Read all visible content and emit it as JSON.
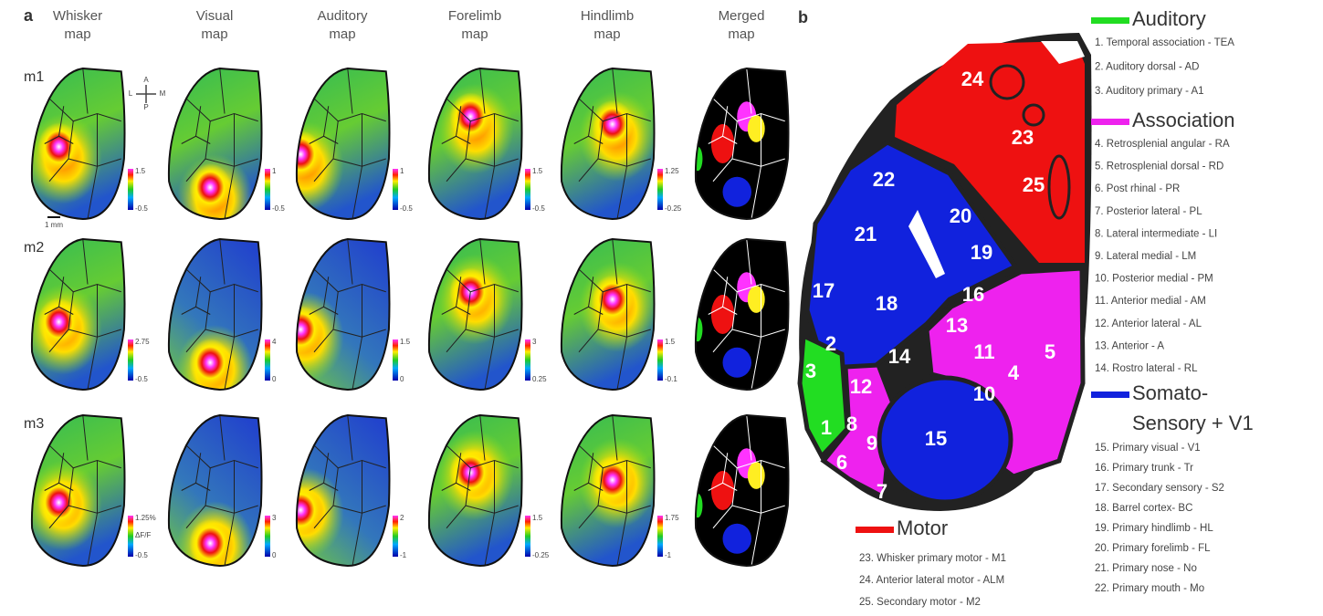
{
  "panel_a": {
    "label": "a",
    "columns": [
      [
        "Whisker",
        "map"
      ],
      [
        "Visual",
        "map"
      ],
      [
        "Auditory",
        "map"
      ],
      [
        "Forelimb",
        "map"
      ],
      [
        "Hindlimb",
        "map"
      ],
      [
        "Merged",
        "map"
      ]
    ],
    "orientation": {
      "a": "A",
      "p": "P",
      "l": "L",
      "m": "M"
    },
    "scale": "1 mm",
    "rows": [
      {
        "label": "m1",
        "colorbars": [
          {
            "max": "1.5",
            "min": "-0.5"
          },
          {
            "max": "1",
            "min": "-0.5"
          },
          {
            "max": "1",
            "min": "-0.5"
          },
          {
            "max": "1.5",
            "min": "-0.5"
          },
          {
            "max": "1.25",
            "min": "-0.25"
          }
        ]
      },
      {
        "label": "m2",
        "colorbars": [
          {
            "max": "2.75",
            "min": "-0.5"
          },
          {
            "max": "4",
            "min": "0"
          },
          {
            "max": "1.5",
            "min": "0"
          },
          {
            "max": "3",
            "min": "0.25"
          },
          {
            "max": "1.5",
            "min": "-0.1"
          }
        ]
      },
      {
        "label": "m3",
        "colorbars": [
          {
            "max": "1.25%",
            "unit": "ΔF/F",
            "min": "-0.5"
          },
          {
            "max": "3",
            "min": "0"
          },
          {
            "max": "2",
            "min": "-1"
          },
          {
            "max": "1.5",
            "min": "-0.25"
          },
          {
            "max": "1.75",
            "min": "-1"
          }
        ]
      }
    ]
  },
  "panel_b": {
    "label": "b",
    "map_labels": [
      "1",
      "2",
      "3",
      "4",
      "5",
      "6",
      "7",
      "8",
      "9",
      "10",
      "11",
      "12",
      "13",
      "14",
      "15",
      "16",
      "17",
      "18",
      "19",
      "20",
      "21",
      "22",
      "23",
      "24",
      "25"
    ],
    "groups": [
      {
        "name": [
          "Auditory"
        ],
        "color": "#22dd22",
        "items": [
          "1. Temporal association - TEA",
          "2. Auditory dorsal - AD",
          "3. Auditory primary - A1"
        ]
      },
      {
        "name": [
          "Association"
        ],
        "color": "#ee22ee",
        "items": [
          "4. Retrosplenial angular - RA",
          "5. Retrosplenial dorsal - RD",
          "6. Post rhinal - PR",
          "7. Posterior lateral - PL",
          "8. Lateral intermediate - LI",
          "9. Lateral medial - LM",
          "10. Posterior medial - PM",
          "11. Anterior medial - AM",
          "12. Anterior lateral - AL",
          "13. Anterior - A",
          "14. Rostro lateral - RL"
        ]
      },
      {
        "name": [
          "Somato-",
          "Sensory + V1"
        ],
        "color": "#1122dd",
        "items": [
          "15. Primary visual - V1",
          "16. Primary trunk - Tr",
          "17. Secondary sensory - S2",
          "18. Barrel cortex- BC",
          "19. Primary hindlimb - HL",
          "20. Primary forelimb - FL",
          "21. Primary nose - No",
          "22. Primary mouth - Mo"
        ]
      },
      {
        "name": [
          "Motor"
        ],
        "color": "#ee1111",
        "items": [
          "23. Whisker primary motor - M1",
          "24. Anterior lateral motor - ALM",
          "25. Secondary motor - M2"
        ]
      }
    ]
  }
}
